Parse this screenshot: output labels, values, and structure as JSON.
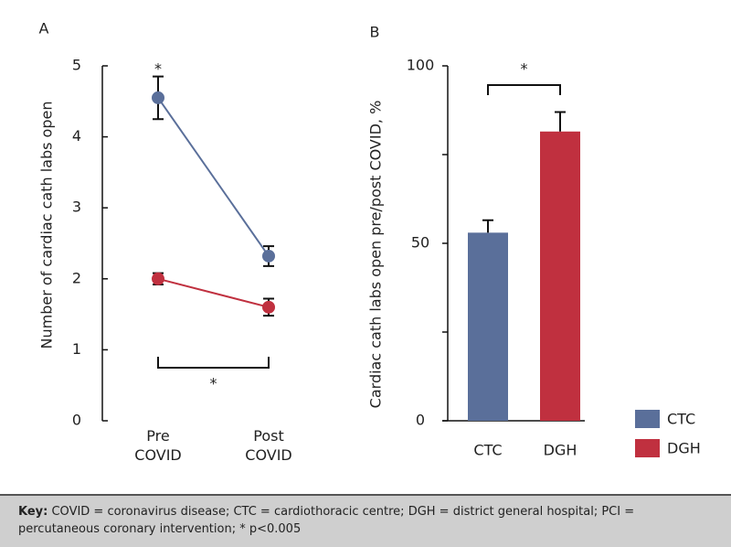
{
  "chart_data": [
    {
      "type": "line",
      "panel_label": "A",
      "y_label": "Number of cardiac cath labs open",
      "categories": [
        "Pre COVID",
        "Post COVID"
      ],
      "series": [
        {
          "name": "CTC",
          "color": "#5a6f9a",
          "values": [
            4.55,
            2.32
          ],
          "errors": [
            0.3,
            0.14
          ]
        },
        {
          "name": "DGH",
          "color": "#c0303f",
          "values": [
            2.0,
            1.6
          ],
          "errors": [
            0.08,
            0.12
          ]
        }
      ],
      "ylim": [
        0,
        5
      ],
      "yticks": [
        0,
        1,
        2,
        3,
        4,
        5
      ],
      "annotations": [
        "*",
        "*"
      ]
    },
    {
      "type": "bar",
      "panel_label": "B",
      "y_label": "Cardiac cath labs open pre/post COVID, %",
      "categories": [
        "CTC",
        "DGH"
      ],
      "values": [
        53,
        81.5
      ],
      "errors": [
        3.5,
        5.5
      ],
      "colors": [
        "#5a6f9a",
        "#c0303f"
      ],
      "ylim": [
        0,
        100
      ],
      "yticks": [
        0,
        50,
        100
      ],
      "yminor_ticks": [
        25,
        75
      ],
      "annotations": [
        "*"
      ]
    }
  ],
  "footer": {
    "key_label": "Key:",
    "key_text": "COVID = coronavirus disease; CTC = cardiothoracic centre; DGH = district general hospital; PCI = percutaneous coronary intervention; * p<0.005"
  }
}
